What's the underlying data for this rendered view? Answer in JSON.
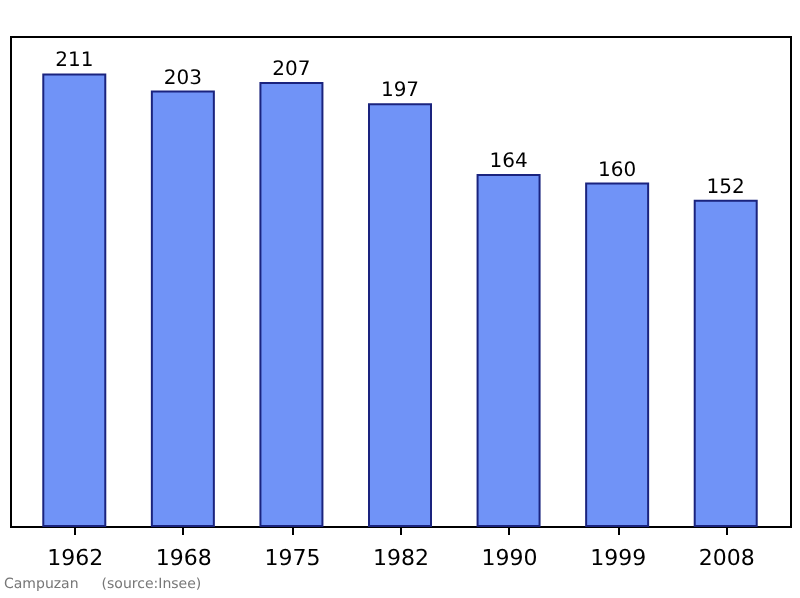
{
  "chart_data": {
    "type": "bar",
    "categories": [
      "1962",
      "1968",
      "1975",
      "1982",
      "1990",
      "1999",
      "2008"
    ],
    "values": [
      211,
      203,
      207,
      197,
      164,
      160,
      152
    ],
    "color": "#7093f7",
    "data_labels": true,
    "tick_labels": "x",
    "annotations": [
      "Campuzan",
      "(source:Insee)"
    ]
  }
}
